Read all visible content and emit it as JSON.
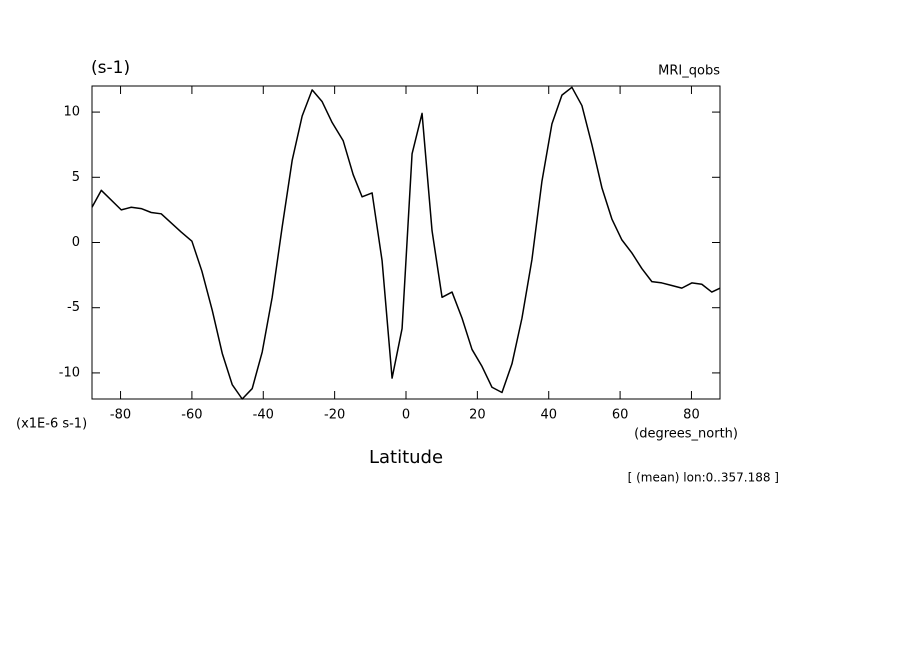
{
  "chart_data": {
    "type": "line",
    "title": "(s-1)",
    "subtitle": "MRI_qobs",
    "y_unit": "(x1E-6 s-1)",
    "x_unit": "(degrees_north)",
    "x_label": "Latitude",
    "annotation": "[ (mean) lon:0..357.188 ]",
    "x": [
      -88,
      -85.4,
      -79.8,
      -77,
      -74.2,
      -71.4,
      -68.6,
      -65.8,
      -63,
      -60,
      -57.2,
      -54.3,
      -51.5,
      -48.7,
      -45.9,
      -43.1,
      -40.3,
      -37.5,
      -34.7,
      -31.9,
      -29.1,
      -26.3,
      -23.5,
      -20.7,
      -17.6,
      -14.8,
      -12.3,
      -9.5,
      -6.7,
      -3.9,
      -1.1,
      1.7,
      4.5,
      7.3,
      10.1,
      12.9,
      15.7,
      18.5,
      21.3,
      24.1,
      26.9,
      29.7,
      32.5,
      35.3,
      38.1,
      40.9,
      43.7,
      46.5,
      49.3,
      52.1,
      54.9,
      57.7,
      60.5,
      63.3,
      66.1,
      68.9,
      71.7,
      74.5,
      77.3,
      80.1,
      82.9,
      85.7,
      88
    ],
    "series": [
      {
        "color": "#000000",
        "values": [
          2.7,
          4.0,
          2.5,
          2.7,
          2.6,
          2.3,
          2.2,
          1.5,
          0.8,
          0.1,
          -2.2,
          -5.2,
          -8.5,
          -10.9,
          -12.0,
          -11.2,
          -8.4,
          -4.2,
          1.2,
          6.3,
          9.7,
          11.7,
          10.8,
          9.2,
          7.8,
          5.2,
          3.5,
          3.8,
          -1.4,
          -10.4,
          -6.6,
          6.8,
          9.9,
          0.9,
          -4.2,
          -3.8,
          -5.8,
          -8.2,
          -9.5,
          -11.1,
          -11.5,
          -9.3,
          -5.8,
          -1.3,
          4.7,
          9.1,
          11.3,
          11.9,
          10.5,
          7.5,
          4.2,
          1.8,
          0.2,
          -0.8,
          -2.0,
          -3.0,
          -3.1,
          -3.3,
          -3.5,
          -3.1,
          -3.2,
          -3.8,
          -3.5
        ]
      }
    ],
    "xlim": [
      -88,
      88
    ],
    "ylim": [
      -12,
      12
    ],
    "xticks": [
      -80,
      -60,
      -40,
      -20,
      0,
      20,
      40,
      60,
      80
    ],
    "yticks": [
      -10,
      -5,
      0,
      5,
      10
    ]
  }
}
